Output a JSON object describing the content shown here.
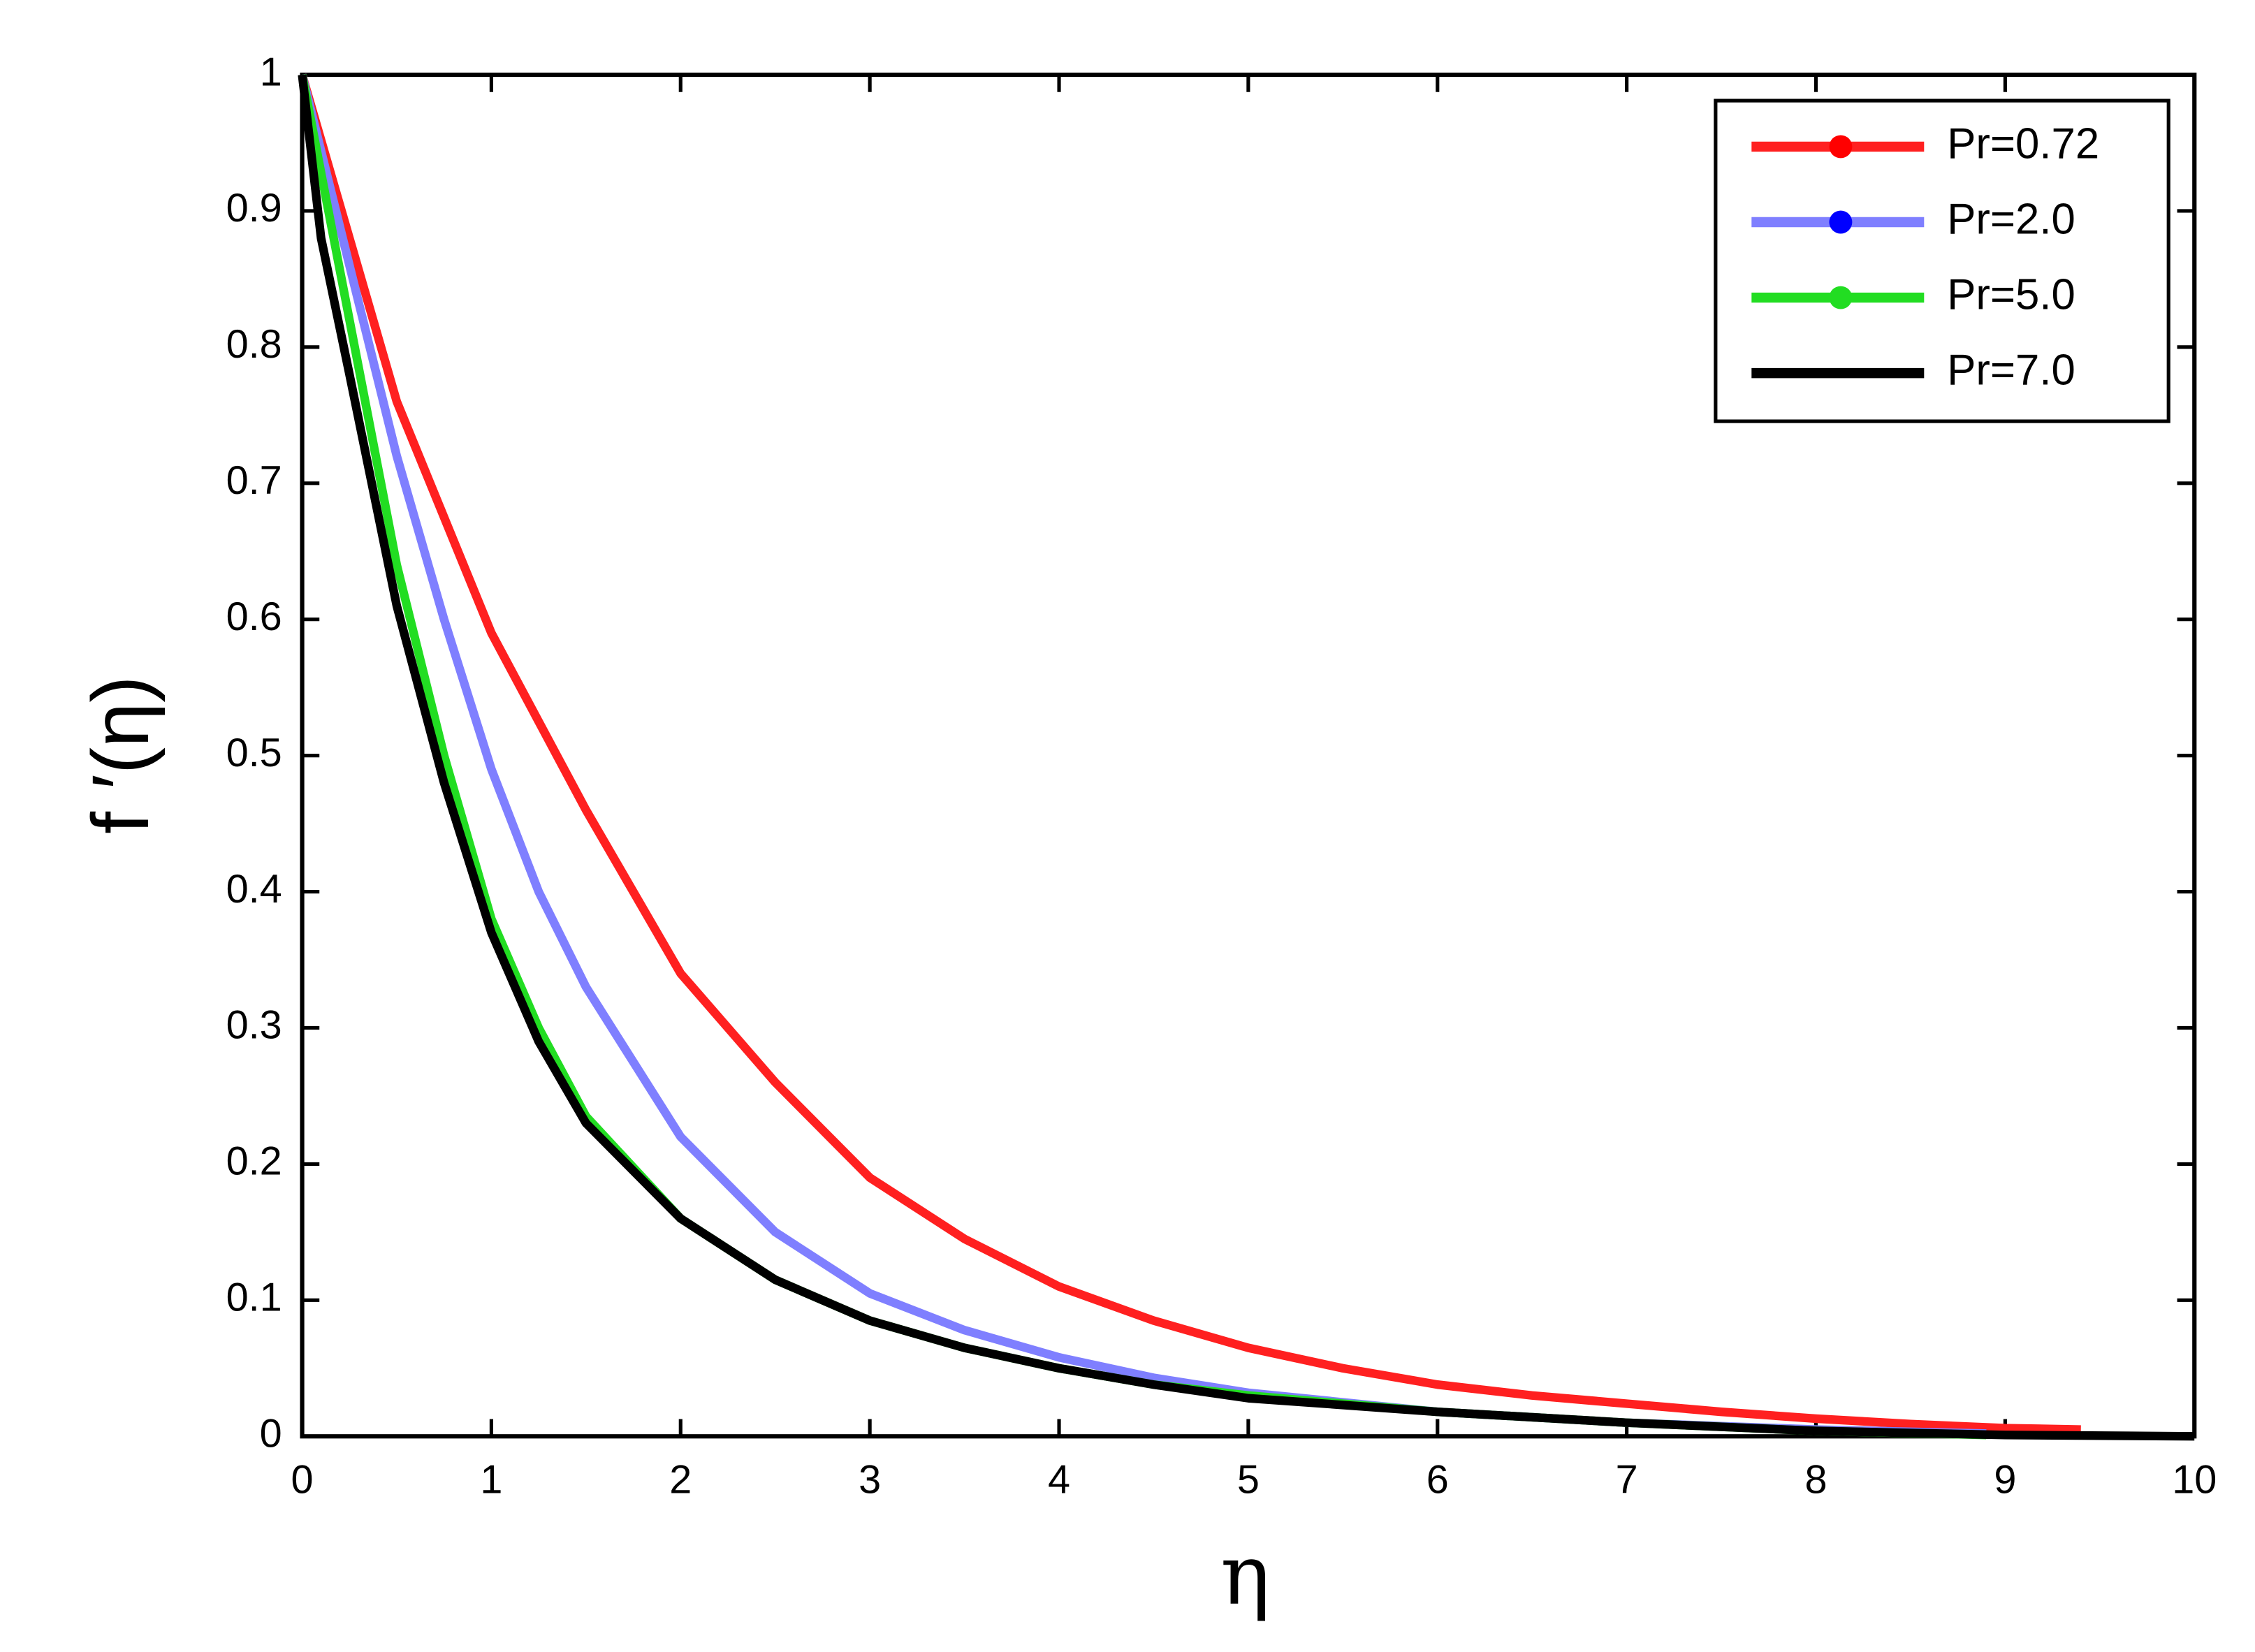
{
  "chart_data": {
    "type": "line",
    "x_label": "η",
    "y_label": "f ′(η)",
    "xlim": [
      0,
      10
    ],
    "ylim": [
      0,
      1
    ],
    "xticks": [
      0,
      1,
      2,
      3,
      4,
      5,
      6,
      7,
      8,
      9,
      10
    ],
    "yticks": [
      0,
      0.1,
      0.2,
      0.3,
      0.4,
      0.5,
      0.6,
      0.7,
      0.8,
      0.9,
      1
    ],
    "grid": false,
    "legend": "upper right",
    "series": [
      {
        "name": "Pr=0.72",
        "color": "#ff2020",
        "x": [
          0,
          0.5,
          1,
          1.5,
          2,
          2.5,
          3,
          3.5,
          4,
          4.5,
          5,
          5.5,
          6,
          6.5,
          7,
          7.5,
          8,
          8.5,
          9,
          9.4
        ],
        "values": [
          1,
          0.76,
          0.59,
          0.46,
          0.34,
          0.26,
          0.19,
          0.145,
          0.11,
          0.085,
          0.065,
          0.05,
          0.038,
          0.03,
          0.024,
          0.018,
          0.013,
          0.009,
          0.006,
          0.005
        ]
      },
      {
        "name": "Pr=2.0",
        "color": "#7f7fff",
        "x": [
          0,
          0.25,
          0.5,
          0.75,
          1,
          1.25,
          1.5,
          2,
          2.5,
          3,
          3.5,
          4,
          4.5,
          5,
          6,
          7,
          8,
          8.9
        ],
        "values": [
          1,
          0.86,
          0.72,
          0.6,
          0.49,
          0.4,
          0.33,
          0.22,
          0.15,
          0.105,
          0.078,
          0.058,
          0.043,
          0.032,
          0.018,
          0.01,
          0.005,
          0.002
        ]
      },
      {
        "name": "Pr=5.0",
        "color": "#22dd22",
        "x": [
          0,
          0.25,
          0.5,
          0.75,
          1,
          1.25,
          1.5,
          2,
          2.5,
          3,
          3.5,
          4,
          4.5,
          5,
          6,
          7,
          8,
          8.9
        ],
        "values": [
          1,
          0.82,
          0.64,
          0.5,
          0.38,
          0.3,
          0.235,
          0.16,
          0.115,
          0.085,
          0.065,
          0.05,
          0.038,
          0.03,
          0.018,
          0.01,
          0.004,
          0.001
        ]
      },
      {
        "name": "Pr=7.0",
        "color": "#000000",
        "x": [
          0,
          0.1,
          0.25,
          0.5,
          0.75,
          1,
          1.25,
          1.5,
          2,
          2.5,
          3,
          3.5,
          4,
          4.5,
          5,
          6,
          7,
          8,
          9,
          10
        ],
        "values": [
          1,
          0.88,
          0.78,
          0.61,
          0.48,
          0.37,
          0.29,
          0.23,
          0.16,
          0.115,
          0.085,
          0.065,
          0.05,
          0.038,
          0.028,
          0.018,
          0.01,
          0.004,
          0.001,
          0
        ]
      }
    ]
  }
}
